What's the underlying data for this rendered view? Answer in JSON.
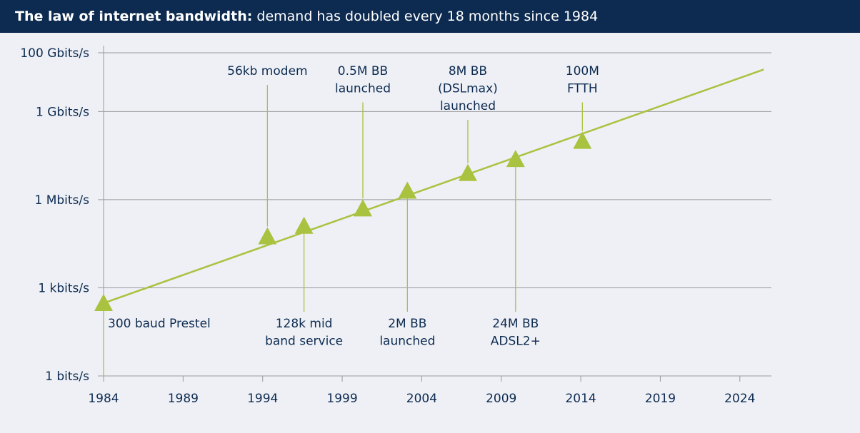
{
  "header": {
    "title_bold": "The law of internet bandwidth:",
    "title_rest": " demand has doubled every 18 months since 1984"
  },
  "colors": {
    "header_bg": "#0d2b50",
    "background": "#eef0f6",
    "trend_line": "#a9c23f",
    "marker": "#a9c23f",
    "grid": "#9a9a9a",
    "text": "#0d2b50"
  },
  "chart_data": {
    "type": "scatter",
    "title": "The law of internet bandwidth: demand has doubled every 18 months since 1984",
    "xlabel": "",
    "ylabel": "",
    "y_scale": "log10",
    "xlim": [
      1984,
      2026
    ],
    "y_ticks": [
      {
        "label": "1 bits/s",
        "value": 1
      },
      {
        "label": "1 kbits/s",
        "value": 1000
      },
      {
        "label": "1 Mbits/s",
        "value": 1000000
      },
      {
        "label": "1 Gbits/s",
        "value": 1000000000
      },
      {
        "label": "100 Gbits/s",
        "value": 100000000000
      }
    ],
    "x_ticks": [
      "1984",
      "1989",
      "1994",
      "1999",
      "2004",
      "2009",
      "2014",
      "2019",
      "2024"
    ],
    "grid": "horizontal",
    "trend": {
      "x": [
        1984,
        2025.5
      ],
      "y": [
        300,
        27000000000
      ]
    },
    "points": [
      {
        "x": 1984,
        "y": 300,
        "label": [
          "300 baud Prestel"
        ],
        "label_pos": "below"
      },
      {
        "x": 1994.3,
        "y": 56000,
        "label": [
          "56kb modem"
        ],
        "label_pos": "above"
      },
      {
        "x": 1996.6,
        "y": 128000,
        "label": [
          "128k mid",
          "band service"
        ],
        "label_pos": "below"
      },
      {
        "x": 2000.3,
        "y": 500000,
        "label": [
          "0.5M BB",
          "launched"
        ],
        "label_pos": "above"
      },
      {
        "x": 2003.1,
        "y": 2000000,
        "label": [
          "2M BB",
          "launched"
        ],
        "label_pos": "below"
      },
      {
        "x": 2006.9,
        "y": 8000000,
        "label": [
          "8M BB",
          "(DSLmax)",
          "launched"
        ],
        "label_pos": "above"
      },
      {
        "x": 2009.9,
        "y": 24000000,
        "label": [
          "24M BB",
          "ADSL2+"
        ],
        "label_pos": "below"
      },
      {
        "x": 2014.1,
        "y": 100000000,
        "label": [
          "100M",
          "FTTH"
        ],
        "label_pos": "above"
      }
    ]
  }
}
